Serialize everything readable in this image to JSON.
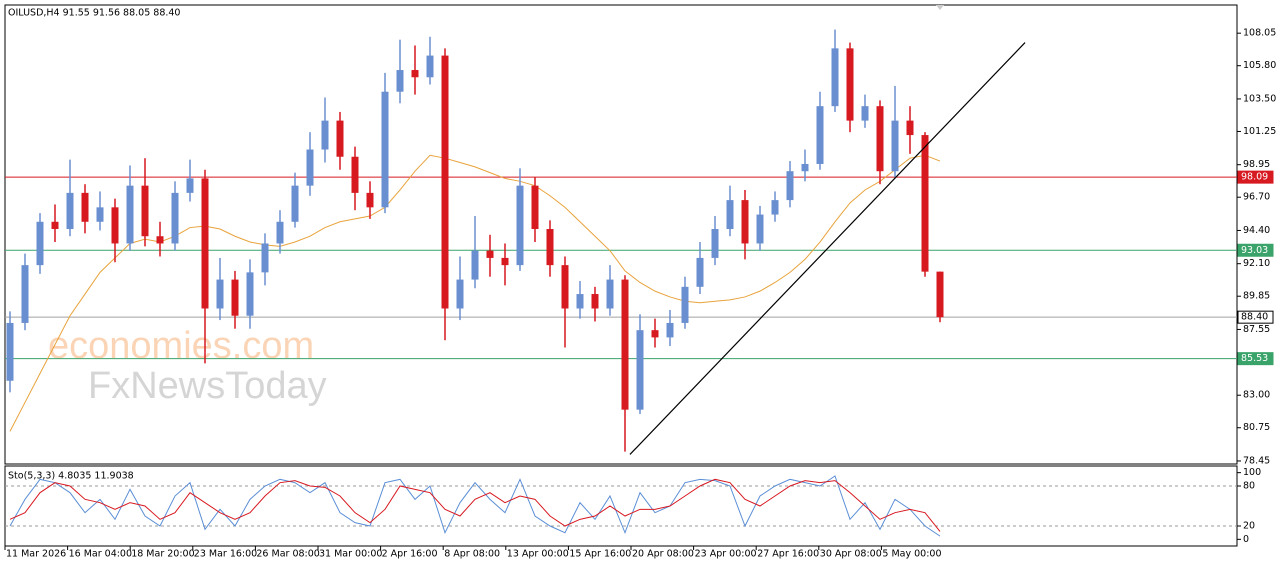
{
  "chart_data": [
    {
      "type": "candlestick",
      "title": "OILUSD,H4  91.55 91.56 88.05 88.40",
      "watermark": [
        "economies.com",
        "FxNewsToday"
      ],
      "x_labels": [
        "11 Mar 2026",
        "16 Mar 04:00",
        "18 Mar 20:00",
        "23 Mar 16:00",
        "26 Mar 08:00",
        "31 Mar 00:00",
        "2 Apr 16:00",
        "8 Apr 08:00",
        "13 Apr 00:00",
        "15 Apr 16:00",
        "20 Apr 08:00",
        "23 Apr 00:00",
        "27 Apr 16:00",
        "30 Apr 08:00",
        "5 May 00:00"
      ],
      "open": [
        84,
        88,
        92,
        95,
        94.5,
        97,
        95,
        96,
        93.5,
        97.5,
        94,
        93.5,
        97,
        98,
        89,
        91,
        88.5,
        91.5,
        93.5,
        95,
        97.5,
        100,
        102,
        99.5,
        97,
        96,
        104,
        105.5,
        105,
        106.5,
        89,
        91,
        93,
        92.5,
        92,
        97.5,
        94.5,
        92,
        89,
        90,
        89,
        91,
        82,
        87.5,
        87,
        88,
        90.5,
        92.5,
        94.5,
        96.5,
        93.5,
        95.5,
        96.5,
        98.5,
        99,
        103,
        107,
        102,
        103,
        98.5,
        102,
        101,
        91.55
      ],
      "high": [
        88.8,
        92.8,
        95.6,
        96.2,
        99.3,
        97.6,
        97.1,
        96.6,
        98.9,
        99.4,
        95,
        97.8,
        99.3,
        98.6,
        92.5,
        91.6,
        92.4,
        94.2,
        95.8,
        98.4,
        101.2,
        103.6,
        102.6,
        100.2,
        97.8,
        105.3,
        107.6,
        107.2,
        107.8,
        107,
        92.6,
        95.4,
        94.1,
        93.5,
        98.7,
        98.1,
        95.1,
        92.6,
        90.9,
        90.5,
        92,
        91.3,
        88.6,
        88.3,
        88.9,
        91.2,
        93.6,
        95.4,
        97.5,
        97.2,
        96.1,
        97.1,
        99.2,
        100,
        104,
        108.3,
        107.4,
        103.8,
        103.4,
        104.4,
        103,
        101.2,
        91.56
      ],
      "low": [
        83.2,
        87.5,
        91.4,
        93.6,
        94,
        94.2,
        94.4,
        92.2,
        93,
        93.3,
        92.6,
        93,
        96.4,
        85.2,
        88.2,
        87.6,
        87.6,
        90.6,
        92.8,
        94.6,
        96.8,
        99.1,
        98.6,
        95.8,
        95.2,
        95.6,
        103.2,
        103.8,
        104.5,
        86.8,
        88.2,
        90.4,
        91.2,
        90.6,
        91.6,
        93.6,
        91.2,
        86.3,
        88.3,
        88.1,
        88.5,
        79.1,
        81.7,
        86.3,
        86.4,
        87.6,
        90,
        92,
        94,
        92.4,
        93,
        95,
        96,
        97.8,
        98.6,
        102.6,
        101.2,
        101.5,
        97.6,
        98.1,
        99.7,
        91.2,
        88.05
      ],
      "close": [
        88,
        92,
        95,
        94.5,
        97,
        95,
        96,
        93.5,
        97.5,
        94,
        93.5,
        97,
        98,
        89,
        91,
        88.5,
        91.5,
        93.5,
        95,
        97.5,
        100,
        102,
        99.5,
        97,
        96,
        104,
        105.5,
        105,
        106.5,
        89,
        91,
        93,
        92.5,
        92,
        97.5,
        94.5,
        92,
        89,
        90,
        89,
        91,
        82,
        87.5,
        87,
        88,
        90.5,
        92.5,
        94.5,
        96.5,
        93.5,
        95.5,
        96.5,
        98.5,
        99,
        103,
        107,
        102,
        103,
        98.5,
        102,
        101,
        91.55,
        88.4
      ],
      "up_color": "#6a8fd0",
      "down_color": "#d71920",
      "ma": {
        "color": "#e8a33c",
        "values": [
          80.5,
          82.5,
          84.5,
          86.5,
          88.5,
          90,
          91.5,
          92.5,
          93.5,
          93.8,
          93.6,
          94,
          94.6,
          94.7,
          94.5,
          94,
          93.6,
          93.4,
          93.3,
          93.6,
          94,
          94.6,
          95,
          95.2,
          95.4,
          96,
          97.2,
          98.5,
          99.6,
          99.4,
          99.1,
          98.8,
          98.4,
          98,
          97.8,
          97.5,
          96.8,
          96,
          95,
          94,
          93,
          91.6,
          90.8,
          90.2,
          89.8,
          89.5,
          89.4,
          89.5,
          89.6,
          89.8,
          90.2,
          90.8,
          91.5,
          92.4,
          93.6,
          95,
          96.3,
          97.2,
          97.8,
          98.6,
          99.4,
          99.6,
          99.2
        ]
      },
      "trendline": {
        "x": [
          41.33,
          67.67
        ],
        "y": [
          78.9,
          107.4
        ],
        "color": "#000000"
      },
      "price_lines": [
        {
          "value": 98.09,
          "color": "#d71920"
        },
        {
          "value": 93.03,
          "color": "#3aa36a"
        },
        {
          "value": {
            "value": 88.4,
            "label": "88.40"
          },
          "color": "#a0a0a0"
        },
        {
          "value": 85.53,
          "color": "#3aa36a"
        }
      ],
      "ylim": [
        78.24,
        110.0
      ],
      "yticks": [
        108.05,
        {
          "value": 105.8,
          "label": "105.80"
        },
        {
          "value": 103.5,
          "label": "103.50"
        },
        101.25,
        98.95,
        {
          "value": 96.7,
          "label": "96.70"
        },
        {
          "value": 94.4,
          "label": "94.40"
        },
        {
          "value": 92.1,
          "label": "92.10"
        },
        89.85,
        87.55,
        {
          "value": 83.0,
          "label": "83.00"
        },
        80.75,
        78.45
      ]
    },
    {
      "type": "line",
      "title": "Sto(5,3,3) 4.8035 11.9038",
      "series": [
        {
          "color": "#5b8fd6",
          "values": [
            20,
            60,
            90,
            85,
            70,
            40,
            60,
            30,
            75,
            35,
            20,
            65,
            85,
            15,
            45,
            20,
            60,
            80,
            90,
            85,
            70,
            85,
            40,
            25,
            20,
            85,
            90,
            60,
            80,
            10,
            55,
            85,
            60,
            40,
            90,
            35,
            20,
            10,
            55,
            30,
            65,
            10,
            70,
            40,
            50,
            85,
            90,
            88,
            80,
            20,
            65,
            80,
            90,
            85,
            80,
            95,
            30,
            55,
            15,
            60,
            45,
            20,
            4.8035
          ]
        },
        {
          "color": "#d71920",
          "values": [
            30,
            40,
            70,
            85,
            80,
            60,
            55,
            45,
            55,
            50,
            30,
            40,
            70,
            55,
            40,
            30,
            40,
            65,
            85,
            88,
            80,
            78,
            65,
            40,
            25,
            45,
            80,
            75,
            70,
            45,
            35,
            60,
            70,
            55,
            65,
            60,
            35,
            20,
            30,
            35,
            50,
            35,
            45,
            45,
            50,
            65,
            80,
            90,
            85,
            60,
            50,
            65,
            80,
            88,
            85,
            88,
            70,
            50,
            30,
            40,
            45,
            40,
            11.9038
          ]
        }
      ],
      "levels": [
        80,
        20
      ],
      "ylim": [
        -10,
        110
      ],
      "yticks": [
        100,
        80,
        20,
        0
      ]
    }
  ]
}
